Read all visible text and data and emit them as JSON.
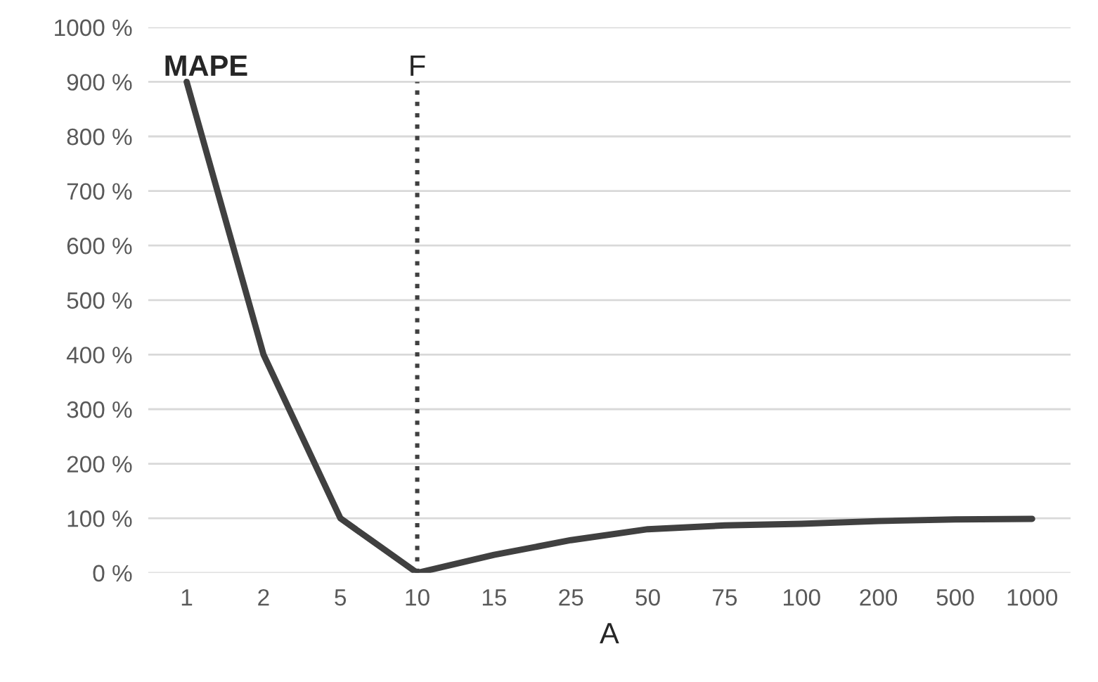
{
  "chart_data": {
    "type": "line",
    "ylabel": "MAPE",
    "xlabel": "A",
    "categories": [
      "1",
      "2",
      "5",
      "10",
      "15",
      "25",
      "50",
      "75",
      "100",
      "200",
      "500",
      "1000"
    ],
    "series": [
      {
        "color": "#404040",
        "values": [
          900,
          400,
          100,
          0,
          33,
          60,
          80,
          87,
          90,
          95,
          98,
          99
        ]
      }
    ],
    "ylim": [
      0,
      1000
    ],
    "yticks": [
      {
        "value": 0,
        "label": "0 %"
      },
      {
        "value": 100,
        "label": "100 %"
      },
      {
        "value": 200,
        "label": "200 %"
      },
      {
        "value": 300,
        "label": "300 %"
      },
      {
        "value": 400,
        "label": "400 %"
      },
      {
        "value": 500,
        "label": "500 %"
      },
      {
        "value": 600,
        "label": "600 %"
      },
      {
        "value": 700,
        "label": "700 %"
      },
      {
        "value": 800,
        "label": "800 %"
      },
      {
        "value": 900,
        "label": "900 %"
      },
      {
        "value": 1000,
        "label": "1000 %"
      }
    ],
    "ref_lines": [
      {
        "axis": "x",
        "value": "10",
        "label": "F",
        "color": "#404040",
        "line_style": "dotted"
      }
    ],
    "grid": "y",
    "marker": "none",
    "line_style": "solid",
    "legend": false
  }
}
